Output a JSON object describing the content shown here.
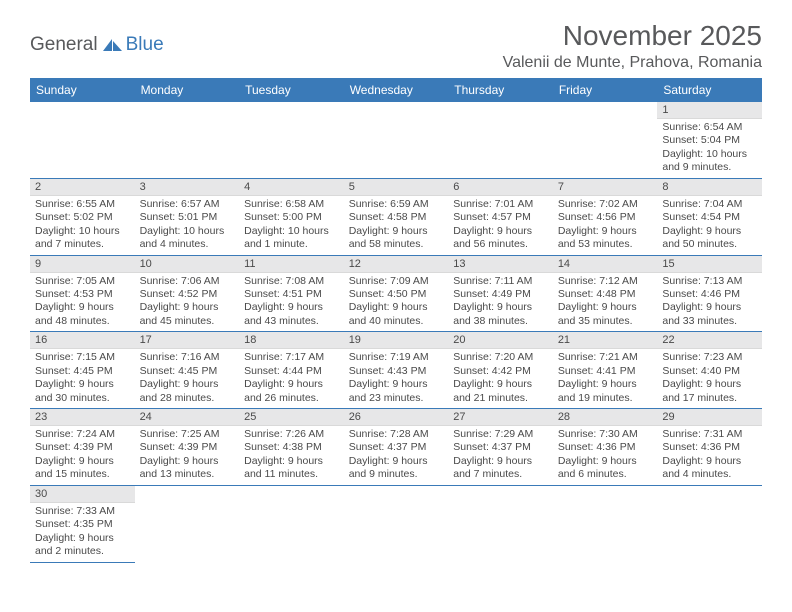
{
  "logo": {
    "general": "General",
    "blue": "Blue"
  },
  "title": "November 2025",
  "location": "Valenii de Munte, Prahova, Romania",
  "colors": {
    "header_bg": "#3a7ab8",
    "header_fg": "#ffffff",
    "daynum_bg": "#e7e7e8",
    "row_divider": "#3a7ab8",
    "text": "#4a4a4a",
    "logo_gray": "#58595b",
    "logo_blue": "#3a7ab8"
  },
  "weekdays": [
    "Sunday",
    "Monday",
    "Tuesday",
    "Wednesday",
    "Thursday",
    "Friday",
    "Saturday"
  ],
  "weeks": [
    [
      null,
      null,
      null,
      null,
      null,
      null,
      {
        "day": "1",
        "sunrise": "Sunrise: 6:54 AM",
        "sunset": "Sunset: 5:04 PM",
        "daylight1": "Daylight: 10 hours",
        "daylight2": "and 9 minutes."
      }
    ],
    [
      {
        "day": "2",
        "sunrise": "Sunrise: 6:55 AM",
        "sunset": "Sunset: 5:02 PM",
        "daylight1": "Daylight: 10 hours",
        "daylight2": "and 7 minutes."
      },
      {
        "day": "3",
        "sunrise": "Sunrise: 6:57 AM",
        "sunset": "Sunset: 5:01 PM",
        "daylight1": "Daylight: 10 hours",
        "daylight2": "and 4 minutes."
      },
      {
        "day": "4",
        "sunrise": "Sunrise: 6:58 AM",
        "sunset": "Sunset: 5:00 PM",
        "daylight1": "Daylight: 10 hours",
        "daylight2": "and 1 minute."
      },
      {
        "day": "5",
        "sunrise": "Sunrise: 6:59 AM",
        "sunset": "Sunset: 4:58 PM",
        "daylight1": "Daylight: 9 hours",
        "daylight2": "and 58 minutes."
      },
      {
        "day": "6",
        "sunrise": "Sunrise: 7:01 AM",
        "sunset": "Sunset: 4:57 PM",
        "daylight1": "Daylight: 9 hours",
        "daylight2": "and 56 minutes."
      },
      {
        "day": "7",
        "sunrise": "Sunrise: 7:02 AM",
        "sunset": "Sunset: 4:56 PM",
        "daylight1": "Daylight: 9 hours",
        "daylight2": "and 53 minutes."
      },
      {
        "day": "8",
        "sunrise": "Sunrise: 7:04 AM",
        "sunset": "Sunset: 4:54 PM",
        "daylight1": "Daylight: 9 hours",
        "daylight2": "and 50 minutes."
      }
    ],
    [
      {
        "day": "9",
        "sunrise": "Sunrise: 7:05 AM",
        "sunset": "Sunset: 4:53 PM",
        "daylight1": "Daylight: 9 hours",
        "daylight2": "and 48 minutes."
      },
      {
        "day": "10",
        "sunrise": "Sunrise: 7:06 AM",
        "sunset": "Sunset: 4:52 PM",
        "daylight1": "Daylight: 9 hours",
        "daylight2": "and 45 minutes."
      },
      {
        "day": "11",
        "sunrise": "Sunrise: 7:08 AM",
        "sunset": "Sunset: 4:51 PM",
        "daylight1": "Daylight: 9 hours",
        "daylight2": "and 43 minutes."
      },
      {
        "day": "12",
        "sunrise": "Sunrise: 7:09 AM",
        "sunset": "Sunset: 4:50 PM",
        "daylight1": "Daylight: 9 hours",
        "daylight2": "and 40 minutes."
      },
      {
        "day": "13",
        "sunrise": "Sunrise: 7:11 AM",
        "sunset": "Sunset: 4:49 PM",
        "daylight1": "Daylight: 9 hours",
        "daylight2": "and 38 minutes."
      },
      {
        "day": "14",
        "sunrise": "Sunrise: 7:12 AM",
        "sunset": "Sunset: 4:48 PM",
        "daylight1": "Daylight: 9 hours",
        "daylight2": "and 35 minutes."
      },
      {
        "day": "15",
        "sunrise": "Sunrise: 7:13 AM",
        "sunset": "Sunset: 4:46 PM",
        "daylight1": "Daylight: 9 hours",
        "daylight2": "and 33 minutes."
      }
    ],
    [
      {
        "day": "16",
        "sunrise": "Sunrise: 7:15 AM",
        "sunset": "Sunset: 4:45 PM",
        "daylight1": "Daylight: 9 hours",
        "daylight2": "and 30 minutes."
      },
      {
        "day": "17",
        "sunrise": "Sunrise: 7:16 AM",
        "sunset": "Sunset: 4:45 PM",
        "daylight1": "Daylight: 9 hours",
        "daylight2": "and 28 minutes."
      },
      {
        "day": "18",
        "sunrise": "Sunrise: 7:17 AM",
        "sunset": "Sunset: 4:44 PM",
        "daylight1": "Daylight: 9 hours",
        "daylight2": "and 26 minutes."
      },
      {
        "day": "19",
        "sunrise": "Sunrise: 7:19 AM",
        "sunset": "Sunset: 4:43 PM",
        "daylight1": "Daylight: 9 hours",
        "daylight2": "and 23 minutes."
      },
      {
        "day": "20",
        "sunrise": "Sunrise: 7:20 AM",
        "sunset": "Sunset: 4:42 PM",
        "daylight1": "Daylight: 9 hours",
        "daylight2": "and 21 minutes."
      },
      {
        "day": "21",
        "sunrise": "Sunrise: 7:21 AM",
        "sunset": "Sunset: 4:41 PM",
        "daylight1": "Daylight: 9 hours",
        "daylight2": "and 19 minutes."
      },
      {
        "day": "22",
        "sunrise": "Sunrise: 7:23 AM",
        "sunset": "Sunset: 4:40 PM",
        "daylight1": "Daylight: 9 hours",
        "daylight2": "and 17 minutes."
      }
    ],
    [
      {
        "day": "23",
        "sunrise": "Sunrise: 7:24 AM",
        "sunset": "Sunset: 4:39 PM",
        "daylight1": "Daylight: 9 hours",
        "daylight2": "and 15 minutes."
      },
      {
        "day": "24",
        "sunrise": "Sunrise: 7:25 AM",
        "sunset": "Sunset: 4:39 PM",
        "daylight1": "Daylight: 9 hours",
        "daylight2": "and 13 minutes."
      },
      {
        "day": "25",
        "sunrise": "Sunrise: 7:26 AM",
        "sunset": "Sunset: 4:38 PM",
        "daylight1": "Daylight: 9 hours",
        "daylight2": "and 11 minutes."
      },
      {
        "day": "26",
        "sunrise": "Sunrise: 7:28 AM",
        "sunset": "Sunset: 4:37 PM",
        "daylight1": "Daylight: 9 hours",
        "daylight2": "and 9 minutes."
      },
      {
        "day": "27",
        "sunrise": "Sunrise: 7:29 AM",
        "sunset": "Sunset: 4:37 PM",
        "daylight1": "Daylight: 9 hours",
        "daylight2": "and 7 minutes."
      },
      {
        "day": "28",
        "sunrise": "Sunrise: 7:30 AM",
        "sunset": "Sunset: 4:36 PM",
        "daylight1": "Daylight: 9 hours",
        "daylight2": "and 6 minutes."
      },
      {
        "day": "29",
        "sunrise": "Sunrise: 7:31 AM",
        "sunset": "Sunset: 4:36 PM",
        "daylight1": "Daylight: 9 hours",
        "daylight2": "and 4 minutes."
      }
    ],
    [
      {
        "day": "30",
        "sunrise": "Sunrise: 7:33 AM",
        "sunset": "Sunset: 4:35 PM",
        "daylight1": "Daylight: 9 hours",
        "daylight2": "and 2 minutes."
      },
      null,
      null,
      null,
      null,
      null,
      null
    ]
  ]
}
